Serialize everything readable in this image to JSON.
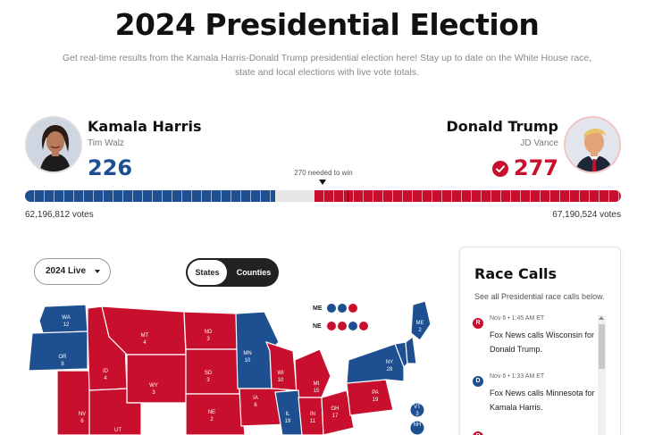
{
  "header": {
    "title": "2024 Presidential Election",
    "subtitle": "Get real-time results from the Kamala Harris-Donald Trump presidential election here! Stay up to date on the White House race, state and local elections with live vote totals."
  },
  "candidates": {
    "dem": {
      "name": "Kamala Harris",
      "running_mate": "Tim Walz",
      "electoral_votes": "226",
      "popular_votes": "62,196,812 votes",
      "color": "#1d4f91"
    },
    "rep": {
      "name": "Donald Trump",
      "running_mate": "JD Vance",
      "electoral_votes": "277",
      "popular_votes": "67,190,524 votes",
      "color": "#c8102e",
      "winner_icon": "check-circle-icon"
    }
  },
  "electoral_bar": {
    "needed_label": "270 needed to win",
    "total": 538,
    "dem": 226,
    "rep": 277
  },
  "controls": {
    "view_select": "2024 Live",
    "toggle": {
      "states": "States",
      "counties": "Counties",
      "active": "States"
    }
  },
  "split_districts": {
    "me": {
      "label": "ME",
      "colors": [
        "#1d4f91",
        "#1d4f91",
        "#c8102e",
        "#c8102e"
      ]
    },
    "ne": {
      "label": "NE",
      "colors": [
        "#c8102e",
        "#c8102e",
        "#1d4f91",
        "#c8102e"
      ]
    }
  },
  "map": {
    "states": [
      {
        "abbr": "WA",
        "ev": "12",
        "winner": "dem"
      },
      {
        "abbr": "OR",
        "ev": "8",
        "winner": "dem"
      },
      {
        "abbr": "NV",
        "ev": "6",
        "winner": "rep"
      },
      {
        "abbr": "ID",
        "ev": "4",
        "winner": "rep"
      },
      {
        "abbr": "MT",
        "ev": "4",
        "winner": "rep"
      },
      {
        "abbr": "WY",
        "ev": "3",
        "winner": "rep"
      },
      {
        "abbr": "UT",
        "ev": "",
        "winner": "rep"
      },
      {
        "abbr": "ND",
        "ev": "3",
        "winner": "rep"
      },
      {
        "abbr": "SD",
        "ev": "3",
        "winner": "rep"
      },
      {
        "abbr": "NE",
        "ev": "2",
        "winner": "rep"
      },
      {
        "abbr": "MN",
        "ev": "10",
        "winner": "dem"
      },
      {
        "abbr": "IA",
        "ev": "6",
        "winner": "rep"
      },
      {
        "abbr": "WI",
        "ev": "10",
        "winner": "rep"
      },
      {
        "abbr": "MI",
        "ev": "15",
        "winner": "rep"
      },
      {
        "abbr": "IL",
        "ev": "19",
        "winner": "dem"
      },
      {
        "abbr": "IN",
        "ev": "11",
        "winner": "rep"
      },
      {
        "abbr": "OH",
        "ev": "17",
        "winner": "rep"
      },
      {
        "abbr": "PA",
        "ev": "19",
        "winner": "rep"
      },
      {
        "abbr": "NY",
        "ev": "28",
        "winner": "dem"
      },
      {
        "abbr": "ME",
        "ev": "2",
        "winner": "dem"
      },
      {
        "abbr": "VT",
        "ev": "3",
        "winner": "dem"
      },
      {
        "abbr": "NH",
        "ev": "",
        "winner": "dem"
      }
    ]
  },
  "race_calls": {
    "title": "Race Calls",
    "subtitle": "See all Presidential race calls below.",
    "items": [
      {
        "party_letter": "R",
        "party_color": "#c8102e",
        "time": "Nov 6 • 1:45 AM ET",
        "text": "Fox News calls Wisconsin for Donald Trump."
      },
      {
        "party_letter": "D",
        "party_color": "#1d4f91",
        "time": "Nov 6 • 1:33 AM ET",
        "text": "Fox News calls Minnesota for Kamala Harris."
      },
      {
        "party_letter": "R",
        "party_color": "#c8102e",
        "time": "",
        "text": ""
      }
    ]
  },
  "colors": {
    "dem": "#1d4f91",
    "rep": "#c8102e",
    "undecided": "#ffffff"
  }
}
